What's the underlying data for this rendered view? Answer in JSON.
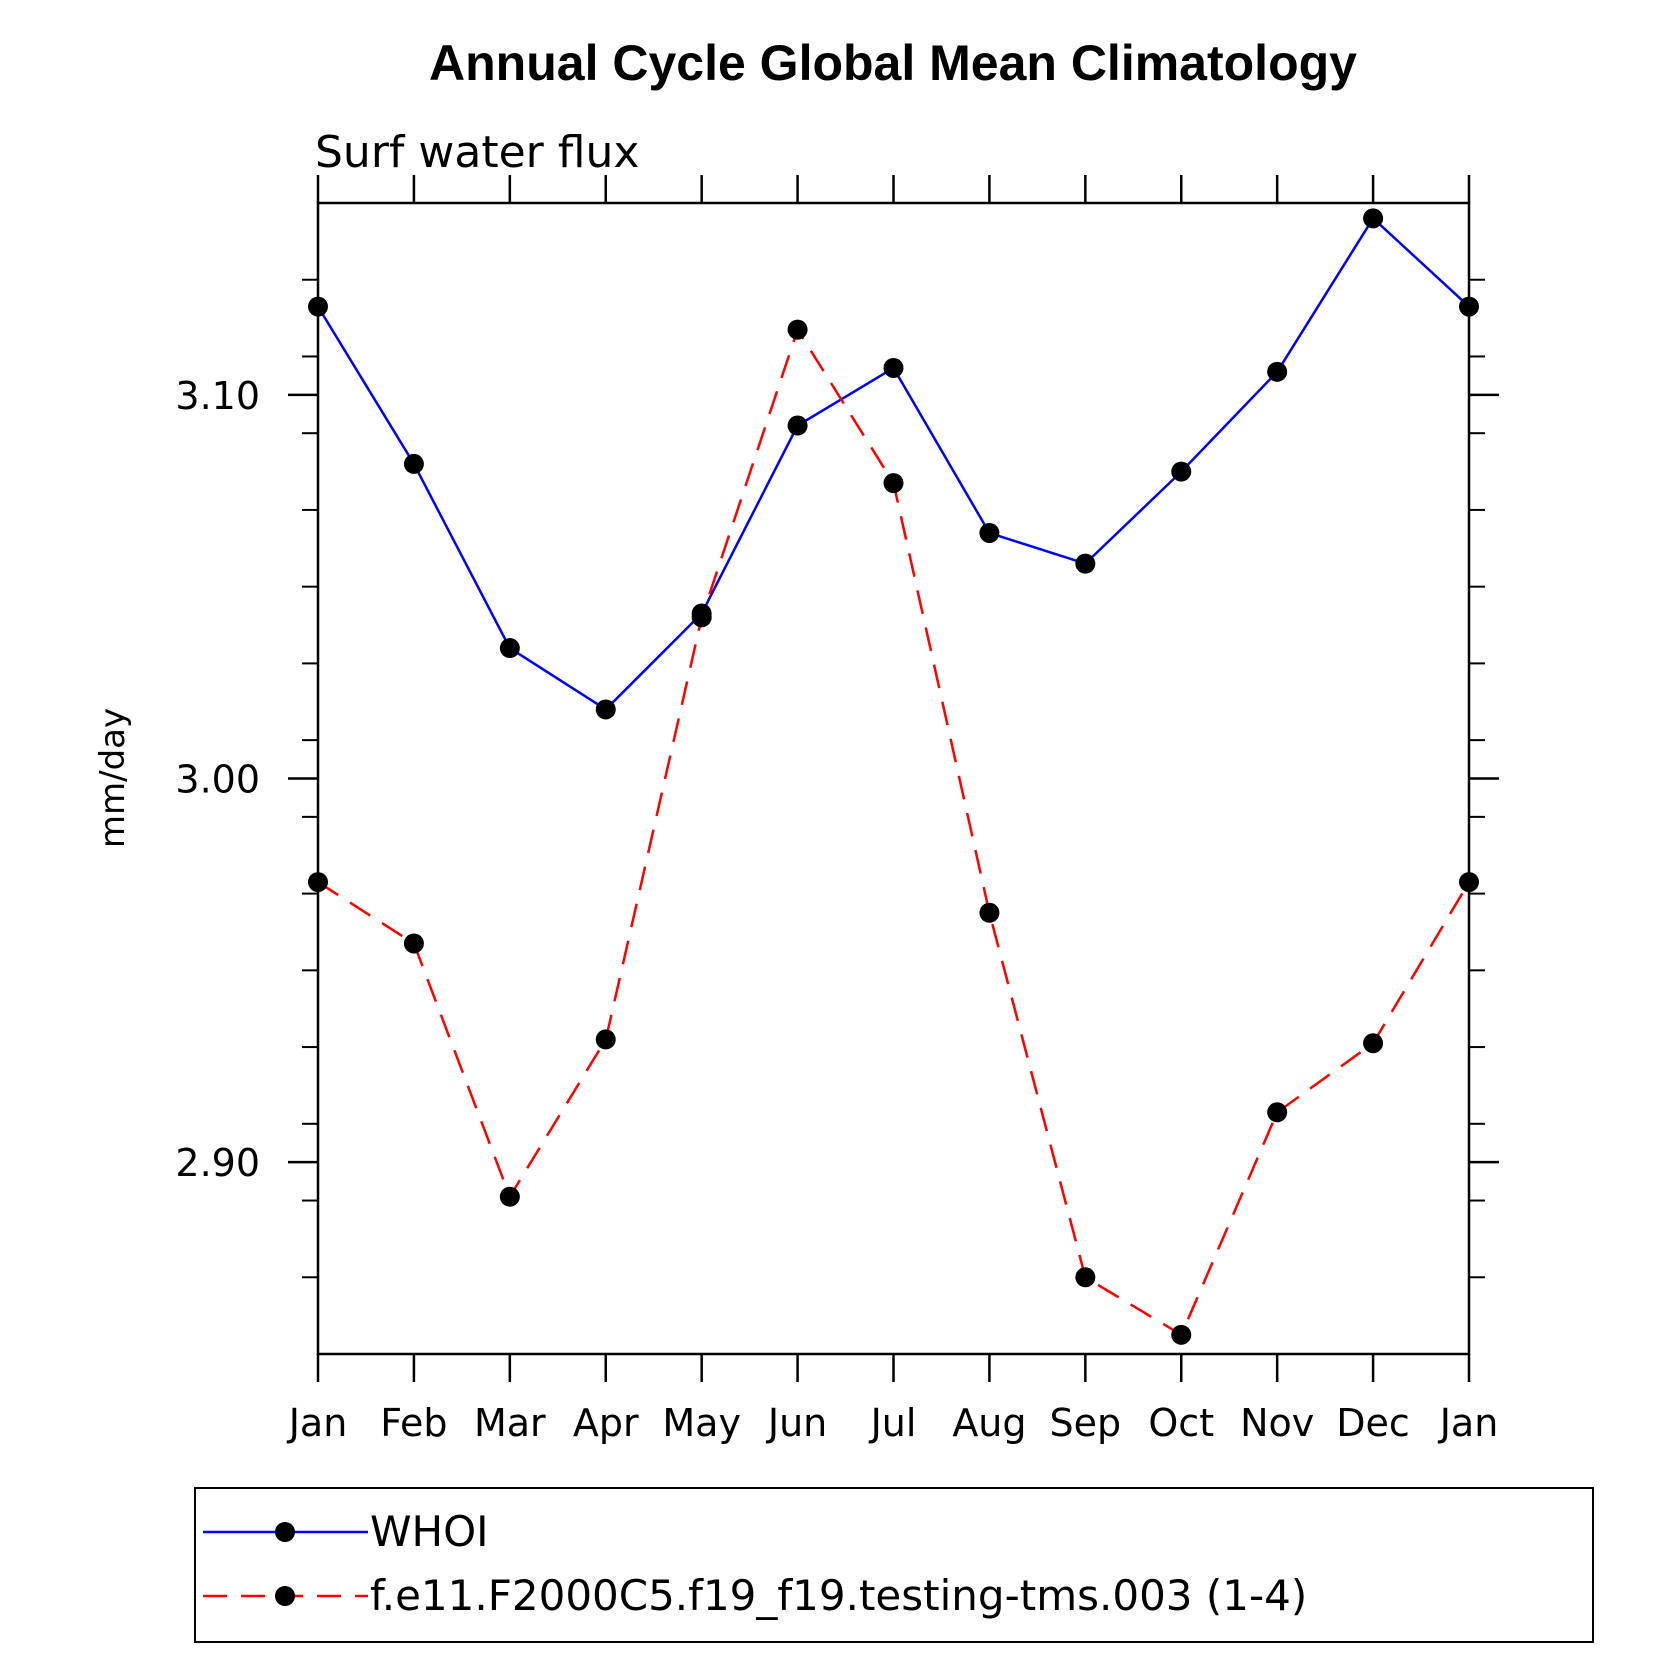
{
  "chart_data": {
    "type": "line",
    "title": "Annual Cycle Global Mean Climatology",
    "subtitle": "Surf water flux",
    "xlabel": "",
    "ylabel": "mm/day",
    "categories": [
      "Jan",
      "Feb",
      "Mar",
      "Apr",
      "May",
      "Jun",
      "Jul",
      "Aug",
      "Sep",
      "Oct",
      "Nov",
      "Dec",
      "Jan"
    ],
    "ylim": [
      2.85,
      3.15
    ],
    "y_ticks": [
      {
        "value": 2.9,
        "label": "2.90"
      },
      {
        "value": 3.0,
        "label": "3.00"
      },
      {
        "value": 3.1,
        "label": "3.10"
      }
    ],
    "y_minor_step": 0.02,
    "grid": false,
    "legend_position": "bottom",
    "series": [
      {
        "name": "WHOI",
        "color": "#0000ff",
        "dash": "solid",
        "marker": "filled-circle",
        "values": [
          3.123,
          3.082,
          3.034,
          3.018,
          3.043,
          3.092,
          3.107,
          3.064,
          3.056,
          3.08,
          3.106,
          3.146,
          3.123
        ]
      },
      {
        "name": "f.e11.F2000C5.f19_f19.testing-tms.003 (1-4)",
        "color": "#ff0000",
        "dash": "dashed",
        "marker": "filled-circle",
        "values": [
          2.973,
          2.957,
          2.891,
          2.932,
          3.042,
          3.117,
          3.077,
          2.965,
          2.87,
          2.855,
          2.913,
          2.931,
          2.973
        ]
      }
    ]
  }
}
